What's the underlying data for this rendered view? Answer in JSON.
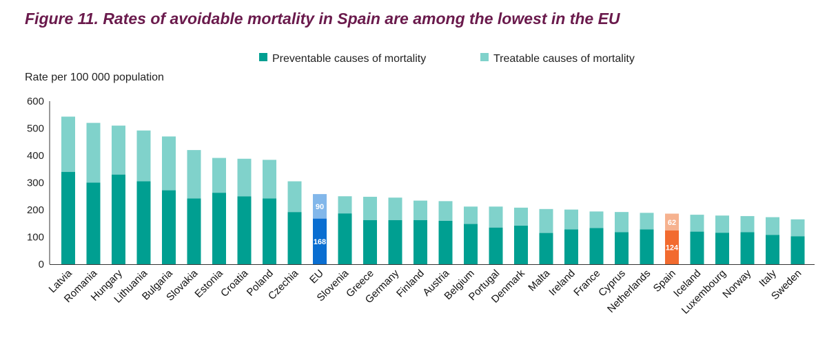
{
  "title": "Figure 11. Rates of avoidable mortality in Spain are among the lowest in the EU",
  "chart_data": {
    "type": "bar",
    "stacked": true,
    "title": "Figure 11. Rates of avoidable mortality in Spain are among the lowest in the EU",
    "ylabel": "Rate per 100 000 population",
    "xlabel": "",
    "ylim": [
      0,
      600
    ],
    "yticks": [
      0,
      100,
      200,
      300,
      400,
      500,
      600
    ],
    "grid": false,
    "legend_position": "top",
    "categories": [
      "Latvia",
      "Romania",
      "Hungary",
      "Lithuania",
      "Bulgaria",
      "Slovakia",
      "Estonia",
      "Croatia",
      "Poland",
      "Czechia",
      "EU",
      "Slovenia",
      "Greece",
      "Germany",
      "Finland",
      "Austria",
      "Belgium",
      "Portugal",
      "Denmark",
      "Malta",
      "Ireland",
      "France",
      "Cyprus",
      "Netherlands",
      "Spain",
      "Iceland",
      "Luxembourg",
      "Norway",
      "Italy",
      "Sweden"
    ],
    "series": [
      {
        "name": "Preventable causes of mortality",
        "color": "#009f91",
        "values": [
          340,
          300,
          330,
          305,
          272,
          242,
          263,
          250,
          242,
          192,
          168,
          187,
          162,
          162,
          162,
          160,
          148,
          135,
          142,
          115,
          128,
          133,
          118,
          128,
          124,
          120,
          116,
          118,
          108,
          103
        ]
      },
      {
        "name": "Treatable causes of mortality",
        "color": "#80d2cb",
        "values": [
          203,
          220,
          180,
          187,
          198,
          178,
          128,
          138,
          142,
          113,
          90,
          63,
          86,
          83,
          72,
          72,
          64,
          77,
          66,
          88,
          73,
          61,
          74,
          61,
          62,
          62,
          63,
          59,
          65,
          62
        ]
      }
    ],
    "highlights": {
      "EU": {
        "preventable_color": "#0a6ed1",
        "treatable_color": "#82b7ea",
        "labels": [
          168,
          90
        ]
      },
      "Spain": {
        "preventable_color": "#f26b2f",
        "treatable_color": "#f6b28f",
        "labels": [
          124,
          62
        ]
      }
    }
  }
}
